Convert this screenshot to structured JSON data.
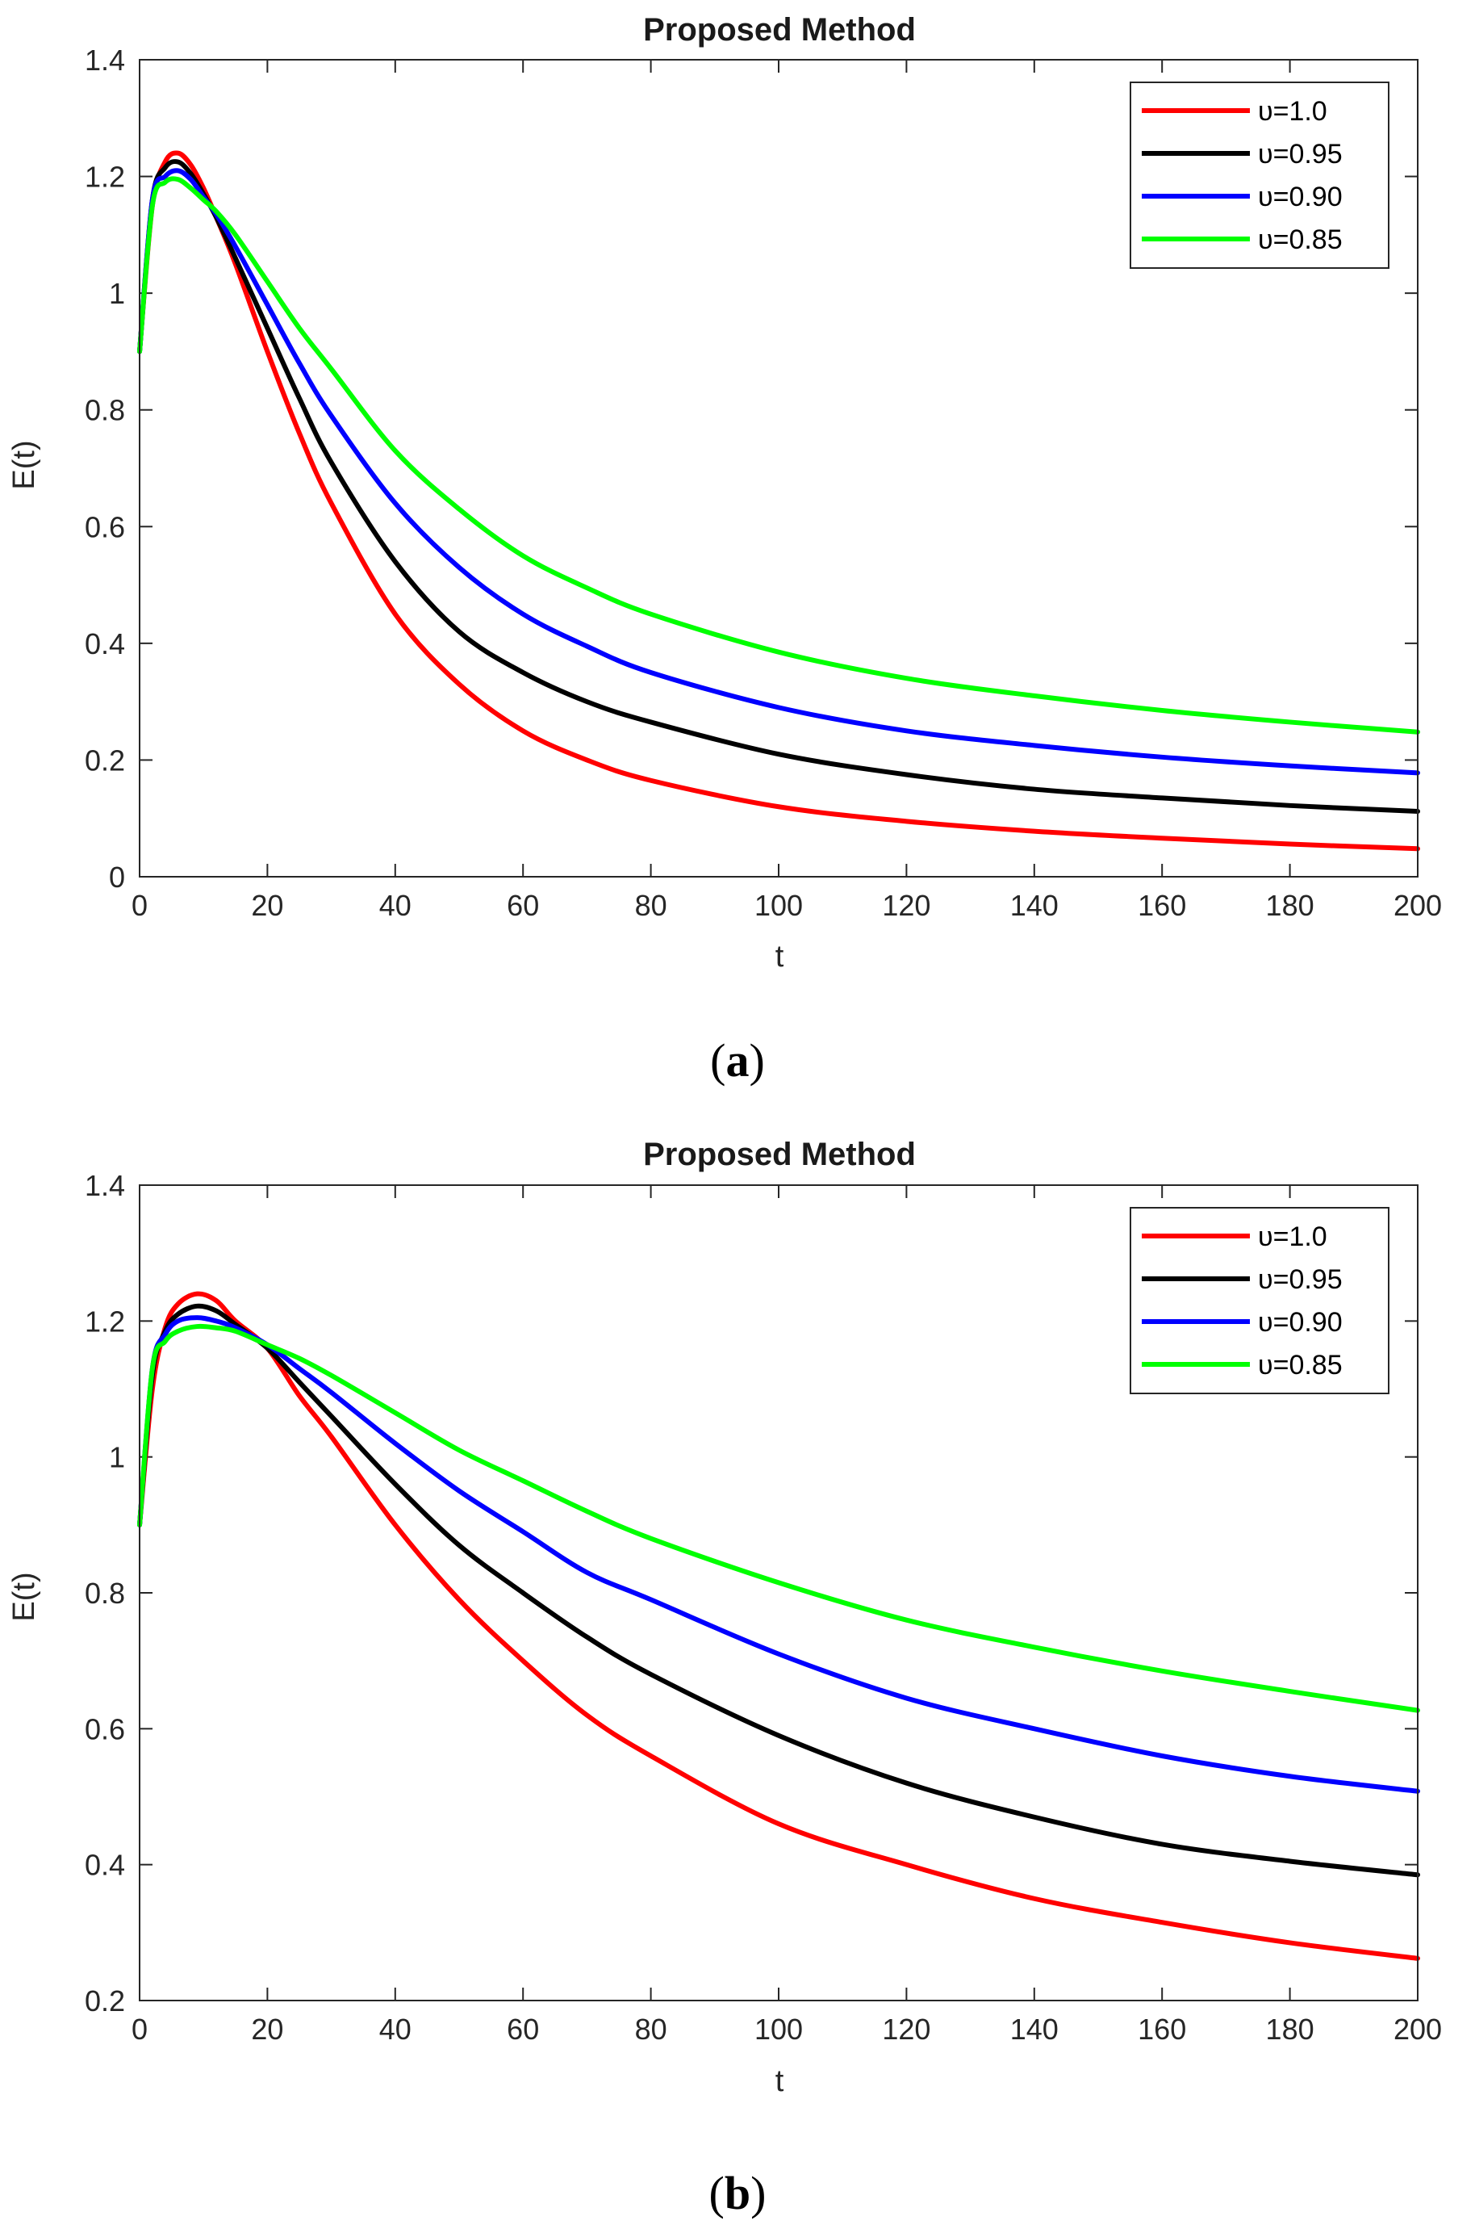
{
  "chart_data": [
    {
      "type": "line",
      "panel_label": "a",
      "caption_open": "(",
      "caption_close": ")",
      "title": "Proposed Method",
      "xlabel": "t",
      "ylabel": "E(t)",
      "xlim": [
        0,
        200
      ],
      "ylim": [
        0,
        1.4
      ],
      "xticks": [
        0,
        20,
        40,
        60,
        80,
        100,
        120,
        140,
        160,
        180,
        200
      ],
      "xtick_labels": [
        "0",
        "20",
        "40",
        "60",
        "80",
        "100",
        "120",
        "140",
        "160",
        "180",
        "200"
      ],
      "yticks": [
        0,
        0.2,
        0.4,
        0.6,
        0.8,
        1.0,
        1.2,
        1.4
      ],
      "ytick_labels": [
        "0",
        "0.2",
        "0.4",
        "0.6",
        "0.8",
        "1",
        "1.2",
        "1.4"
      ],
      "legend_position": "top-right",
      "series": [
        {
          "name": "υ=1.0",
          "color": "#ff0000",
          "x": [
            0,
            2,
            4,
            6,
            8,
            10,
            12,
            15,
            20,
            25,
            30,
            40,
            50,
            60,
            70,
            80,
            100,
            120,
            140,
            160,
            180,
            200
          ],
          "values": [
            0.9,
            1.15,
            1.225,
            1.24,
            1.22,
            1.18,
            1.13,
            1.05,
            0.9,
            0.76,
            0.64,
            0.45,
            0.33,
            0.25,
            0.2,
            0.165,
            0.12,
            0.095,
            0.078,
            0.066,
            0.056,
            0.048
          ]
        },
        {
          "name": "υ=0.95",
          "color": "#000000",
          "x": [
            0,
            2,
            4,
            6,
            8,
            10,
            12,
            15,
            20,
            25,
            30,
            40,
            50,
            60,
            70,
            80,
            100,
            120,
            140,
            160,
            180,
            200
          ],
          "values": [
            0.9,
            1.16,
            1.215,
            1.225,
            1.205,
            1.17,
            1.13,
            1.06,
            0.94,
            0.82,
            0.71,
            0.54,
            0.42,
            0.35,
            0.3,
            0.265,
            0.21,
            0.175,
            0.15,
            0.135,
            0.122,
            0.112
          ]
        },
        {
          "name": "υ=0.90",
          "color": "#0000ff",
          "x": [
            0,
            2,
            4,
            6,
            8,
            10,
            12,
            15,
            20,
            25,
            30,
            40,
            50,
            60,
            70,
            80,
            100,
            120,
            140,
            160,
            180,
            200
          ],
          "values": [
            0.9,
            1.16,
            1.2,
            1.21,
            1.195,
            1.165,
            1.135,
            1.08,
            0.98,
            0.88,
            0.79,
            0.64,
            0.53,
            0.45,
            0.395,
            0.35,
            0.29,
            0.25,
            0.225,
            0.205,
            0.19,
            0.178
          ]
        },
        {
          "name": "υ=0.85",
          "color": "#00ff00",
          "x": [
            0,
            2,
            4,
            6,
            8,
            10,
            12,
            15,
            20,
            25,
            30,
            40,
            50,
            60,
            70,
            80,
            100,
            120,
            140,
            160,
            180,
            200
          ],
          "values": [
            0.9,
            1.15,
            1.19,
            1.195,
            1.18,
            1.16,
            1.14,
            1.1,
            1.02,
            0.94,
            0.87,
            0.73,
            0.63,
            0.55,
            0.495,
            0.45,
            0.385,
            0.34,
            0.31,
            0.285,
            0.265,
            0.248
          ]
        }
      ]
    },
    {
      "type": "line",
      "panel_label": "b",
      "caption_open": "(",
      "caption_close": ")",
      "title": "Proposed Method",
      "xlabel": "t",
      "ylabel": "E(t)",
      "xlim": [
        0,
        200
      ],
      "ylim": [
        0.2,
        1.4
      ],
      "xticks": [
        0,
        20,
        40,
        60,
        80,
        100,
        120,
        140,
        160,
        180,
        200
      ],
      "xtick_labels": [
        "0",
        "20",
        "40",
        "60",
        "80",
        "100",
        "120",
        "140",
        "160",
        "180",
        "200"
      ],
      "yticks": [
        0.2,
        0.4,
        0.6,
        0.8,
        1.0,
        1.2,
        1.4
      ],
      "ytick_labels": [
        "0.2",
        "0.4",
        "0.6",
        "0.8",
        "1",
        "1.2",
        "1.4"
      ],
      "legend_position": "top-right",
      "series": [
        {
          "name": "υ=1.0",
          "color": "#ff0000",
          "x": [
            0,
            2,
            4,
            6,
            9,
            12,
            15,
            20,
            25,
            30,
            40,
            50,
            60,
            70,
            80,
            100,
            120,
            140,
            160,
            180,
            200
          ],
          "values": [
            0.9,
            1.1,
            1.19,
            1.225,
            1.24,
            1.23,
            1.2,
            1.16,
            1.09,
            1.03,
            0.9,
            0.79,
            0.7,
            0.62,
            0.56,
            0.46,
            0.4,
            0.35,
            0.315,
            0.285,
            0.262
          ]
        },
        {
          "name": "υ=0.95",
          "color": "#000000",
          "x": [
            0,
            2,
            4,
            6,
            9,
            12,
            15,
            20,
            25,
            30,
            40,
            50,
            60,
            70,
            80,
            100,
            120,
            140,
            160,
            180,
            200
          ],
          "values": [
            0.9,
            1.12,
            1.185,
            1.21,
            1.222,
            1.215,
            1.195,
            1.16,
            1.11,
            1.06,
            0.96,
            0.87,
            0.8,
            0.735,
            0.68,
            0.59,
            0.52,
            0.47,
            0.43,
            0.405,
            0.385
          ]
        },
        {
          "name": "υ=0.90",
          "color": "#0000ff",
          "x": [
            0,
            2,
            4,
            6,
            9,
            12,
            15,
            20,
            25,
            30,
            40,
            50,
            60,
            70,
            80,
            100,
            120,
            140,
            160,
            180,
            200
          ],
          "values": [
            0.9,
            1.13,
            1.18,
            1.2,
            1.205,
            1.2,
            1.19,
            1.165,
            1.13,
            1.095,
            1.02,
            0.95,
            0.89,
            0.83,
            0.79,
            0.71,
            0.645,
            0.6,
            0.56,
            0.53,
            0.508
          ]
        },
        {
          "name": "υ=0.85",
          "color": "#00ff00",
          "x": [
            0,
            2,
            4,
            6,
            9,
            12,
            15,
            20,
            25,
            30,
            40,
            50,
            60,
            70,
            80,
            100,
            120,
            140,
            160,
            180,
            200
          ],
          "values": [
            0.9,
            1.13,
            1.17,
            1.185,
            1.192,
            1.19,
            1.185,
            1.165,
            1.145,
            1.12,
            1.065,
            1.01,
            0.965,
            0.92,
            0.88,
            0.815,
            0.76,
            0.72,
            0.685,
            0.655,
            0.627
          ]
        }
      ]
    }
  ]
}
